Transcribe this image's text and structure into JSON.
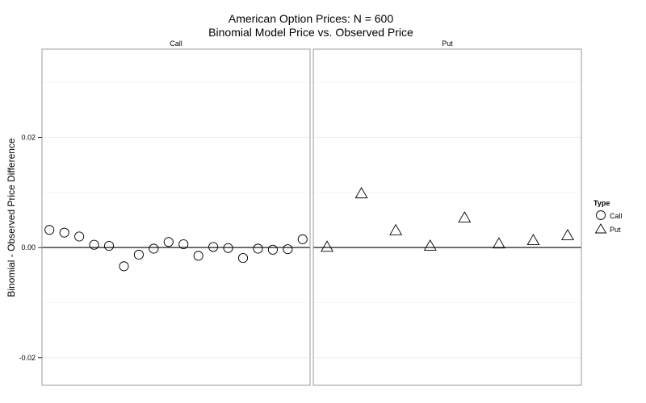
{
  "chart_data": {
    "type": "scatter",
    "title": "American Option Prices: N = 600",
    "subtitle": "Binomial Model Price vs. Observed Price",
    "xlabel": "",
    "ylabel": "Binomial - Observed Price Difference",
    "ylim": [
      -0.025,
      0.036
    ],
    "yticks": [
      -0.02,
      0.0,
      0.02
    ],
    "ytick_labels": [
      "-0.02",
      "0.00",
      "0.02"
    ],
    "grid": true,
    "reference_line_y": 0,
    "legend": {
      "title": "Type",
      "position": "right",
      "entries": [
        "Call",
        "Put"
      ]
    },
    "panels": [
      {
        "name": "Call",
        "shape": "circle",
        "xlim": [
          0.5,
          18.5
        ],
        "x": [
          1,
          2,
          3,
          4,
          5,
          6,
          7,
          8,
          9,
          10,
          11,
          12,
          13,
          14,
          15,
          16,
          17,
          18
        ],
        "values": [
          0.0032,
          0.0027,
          0.002,
          0.0005,
          0.0003,
          -0.0034,
          -0.0013,
          -0.0002,
          0.001,
          0.0006,
          -0.0015,
          0.0001,
          -0.0001,
          -0.0019,
          -0.0002,
          -0.0004,
          -0.0003,
          0.0015
        ]
      },
      {
        "name": "Put",
        "shape": "triangle",
        "xlim": [
          0.6,
          8.4
        ],
        "x": [
          1,
          2,
          3,
          4,
          5,
          6,
          7,
          8
        ],
        "values": [
          0.0001,
          0.0098,
          0.0031,
          0.0003,
          0.0054,
          0.0007,
          0.0013,
          0.0022
        ]
      }
    ]
  }
}
